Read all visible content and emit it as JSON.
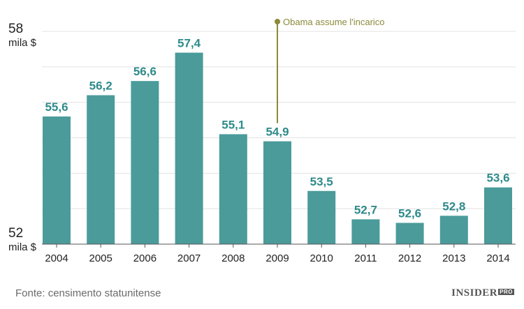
{
  "chart_data": {
    "type": "bar",
    "categories": [
      "2004",
      "2005",
      "2006",
      "2007",
      "2008",
      "2009",
      "2010",
      "2011",
      "2012",
      "2013",
      "2014"
    ],
    "values": [
      55.6,
      56.2,
      56.6,
      57.4,
      55.1,
      54.9,
      53.5,
      52.7,
      52.6,
      52.8,
      53.6
    ],
    "value_labels": [
      "55,6",
      "56,2",
      "56,6",
      "57,4",
      "55,1",
      "54,9",
      "53,5",
      "52,7",
      "52,6",
      "52,8",
      "53,6"
    ],
    "ylim": [
      52,
      58
    ],
    "y_axis": {
      "top_value": "58",
      "top_unit": "mila $",
      "bottom_value": "52",
      "bottom_unit": "mila $"
    },
    "grid": true,
    "annotation": {
      "category": "2009",
      "text": "Obama assume l'incarico"
    },
    "colors": {
      "bar": "#4b9b9b",
      "label": "#2e8a8a",
      "annotation": "#8a8a3a",
      "grid": "#e3e3e3"
    }
  },
  "footer": {
    "source": "Fonte: censimento statunitense",
    "brand": "INSIDER",
    "brand_badge": "PRO"
  }
}
